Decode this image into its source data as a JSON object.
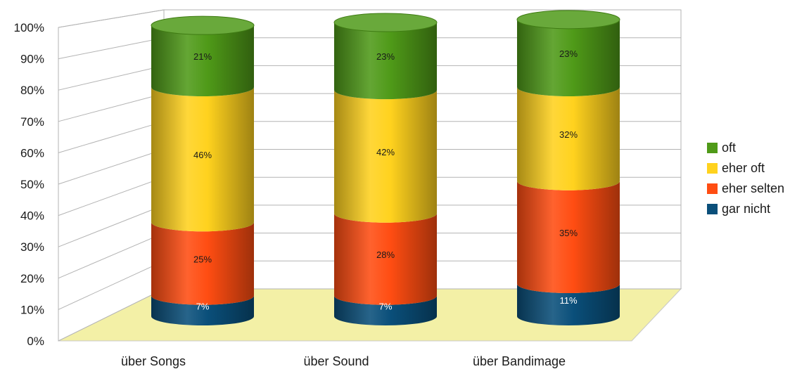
{
  "chart_data": {
    "type": "bar",
    "stacked": true,
    "percent": true,
    "three_d": true,
    "categories": [
      "über Songs",
      "über Sound",
      "über Bandimage"
    ],
    "series": [
      {
        "name": "gar nicht",
        "color": "#0a4f7a",
        "values": [
          7,
          7,
          11
        ],
        "labels": [
          "7%",
          "7%",
          "11%"
        ]
      },
      {
        "name": "eher selten",
        "color": "#ff4d12",
        "values": [
          25,
          28,
          35
        ],
        "labels": [
          "25%",
          "28%",
          "35%"
        ]
      },
      {
        "name": "eher oft",
        "color": "#ffd21e",
        "values": [
          46,
          42,
          32
        ],
        "labels": [
          "46%",
          "42%",
          "32%"
        ]
      },
      {
        "name": "oft",
        "color": "#4f9a18",
        "values": [
          21,
          23,
          23
        ],
        "labels": [
          "21%",
          "23%",
          "23%"
        ]
      }
    ],
    "y_ticks": [
      "0%",
      "10%",
      "20%",
      "30%",
      "40%",
      "50%",
      "60%",
      "70%",
      "80%",
      "90%",
      "100%"
    ],
    "ylim": [
      0,
      100
    ],
    "grid": true,
    "floor_color": "#f3f0a6",
    "legend_position": "right"
  }
}
